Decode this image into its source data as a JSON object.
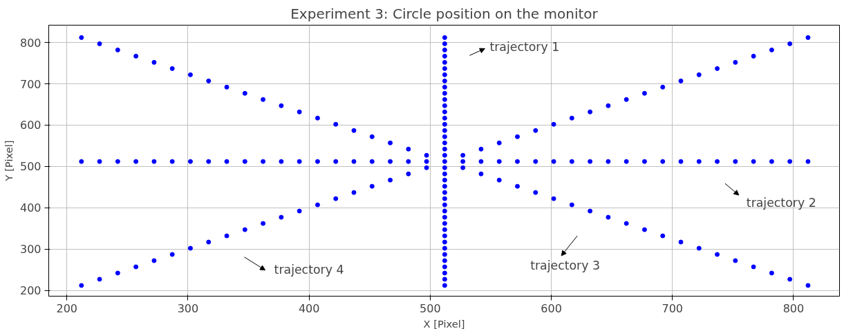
{
  "chart_data": {
    "type": "scatter",
    "title": "Experiment 3: Circle position on the monitor",
    "xlabel": "X [Pixel]",
    "ylabel": "Y [Pixel]",
    "xlim": [
      185,
      838
    ],
    "ylim": [
      186,
      842
    ],
    "xticks": [
      200,
      300,
      400,
      500,
      600,
      700,
      800
    ],
    "yticks": [
      200,
      300,
      400,
      500,
      600,
      700,
      800
    ],
    "grid": true,
    "marker": "circle",
    "series": [
      {
        "color": "#0000ff",
        "x": [
          512,
          512,
          512,
          512,
          512,
          512,
          512,
          512,
          512,
          512,
          512,
          512,
          512,
          512,
          512,
          512,
          512,
          512,
          512,
          512,
          512,
          512,
          512,
          512,
          512,
          512,
          512,
          512,
          512,
          512,
          512,
          512,
          512,
          512,
          512,
          512,
          512,
          512,
          512,
          512,
          512
        ],
        "values": [
          212,
          227,
          242,
          257,
          272,
          287,
          302,
          317,
          332,
          347,
          362,
          377,
          392,
          407,
          422,
          437,
          452,
          467,
          482,
          497,
          512,
          527,
          542,
          557,
          572,
          587,
          602,
          617,
          632,
          647,
          662,
          677,
          692,
          707,
          722,
          737,
          752,
          767,
          782,
          797,
          812
        ]
      },
      {
        "color": "#0000ff",
        "x": [
          212,
          227,
          242,
          257,
          272,
          287,
          302,
          317,
          332,
          347,
          362,
          377,
          392,
          407,
          422,
          437,
          452,
          467,
          482,
          497,
          512,
          527,
          542,
          557,
          572,
          587,
          602,
          617,
          632,
          647,
          662,
          677,
          692,
          707,
          722,
          737,
          752,
          767,
          782,
          797,
          812
        ],
        "values": [
          512,
          512,
          512,
          512,
          512,
          512,
          512,
          512,
          512,
          512,
          512,
          512,
          512,
          512,
          512,
          512,
          512,
          512,
          512,
          512,
          null,
          512,
          512,
          512,
          512,
          512,
          512,
          512,
          512,
          512,
          512,
          512,
          512,
          512,
          512,
          512,
          512,
          512,
          512,
          512,
          512
        ]
      },
      {
        "color": "#0000ff",
        "x": [
          212,
          227,
          242,
          257,
          272,
          287,
          302,
          317,
          332,
          347,
          362,
          377,
          392,
          407,
          422,
          437,
          452,
          467,
          482,
          497,
          512,
          527,
          542,
          557,
          572,
          587,
          602,
          617,
          632,
          647,
          662,
          677,
          692,
          707,
          722,
          737,
          752,
          767,
          782,
          797,
          812
        ],
        "values": [
          812,
          797,
          782,
          767,
          752,
          737,
          722,
          707,
          692,
          677,
          662,
          647,
          632,
          617,
          602,
          587,
          572,
          557,
          542,
          527,
          null,
          497,
          482,
          467,
          452,
          437,
          422,
          407,
          392,
          377,
          362,
          347,
          332,
          317,
          302,
          287,
          272,
          257,
          242,
          227,
          212
        ]
      },
      {
        "color": "#0000ff",
        "x": [
          212,
          227,
          242,
          257,
          272,
          287,
          302,
          317,
          332,
          347,
          362,
          377,
          392,
          407,
          422,
          437,
          452,
          467,
          482,
          497,
          512,
          527,
          542,
          557,
          572,
          587,
          602,
          617,
          632,
          647,
          662,
          677,
          692,
          707,
          722,
          737,
          752,
          767,
          782,
          797,
          812
        ],
        "values": [
          212,
          227,
          242,
          257,
          272,
          287,
          302,
          317,
          332,
          347,
          362,
          377,
          392,
          407,
          422,
          437,
          452,
          467,
          482,
          497,
          null,
          527,
          542,
          557,
          572,
          587,
          602,
          617,
          632,
          647,
          662,
          677,
          692,
          707,
          722,
          737,
          752,
          767,
          782,
          797,
          812
        ]
      }
    ],
    "annotations": [
      "trajectory 1",
      "trajectory 2",
      "trajectory 3",
      "trajectory 4"
    ]
  }
}
